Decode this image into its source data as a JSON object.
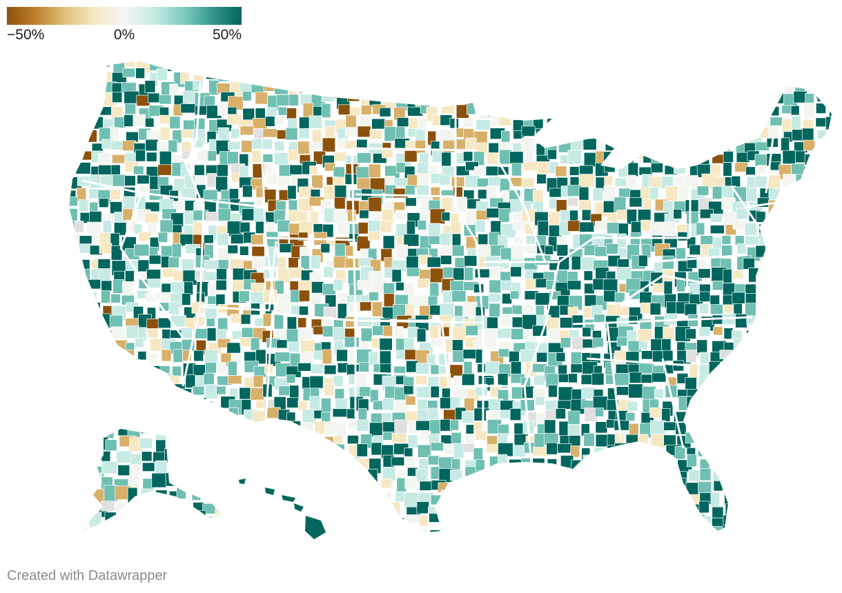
{
  "legend": {
    "min_label": "−50%",
    "mid_label": "0%",
    "max_label": "50%",
    "gradient_colors": [
      "#8c510a",
      "#bf812d",
      "#dfc27d",
      "#f6e8c3",
      "#f5f5f5",
      "#c7eae5",
      "#80cdc1",
      "#35978f",
      "#01665e"
    ]
  },
  "map": {
    "regions": [
      "contiguous-us",
      "alaska",
      "hawaii"
    ],
    "colors": {
      "strong_negative": "#8c510a",
      "negative": "#d8b06a",
      "slight_negative": "#f6e8c3",
      "neutral": "#f2f5f0",
      "slight_positive": "#c7eae5",
      "positive": "#6fbfb2",
      "strong_positive": "#01665e",
      "no_data": "#e0e0e0",
      "state_border": "#ffffff"
    }
  },
  "credit": "Created with Datawrapper"
}
